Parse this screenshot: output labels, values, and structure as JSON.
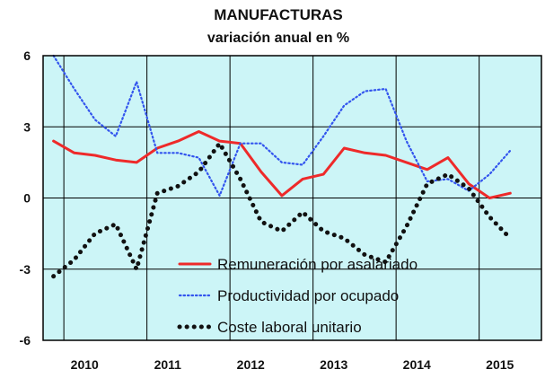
{
  "chart_data": {
    "type": "line",
    "title": "MANUFACTURAS",
    "subtitle": "variación anual en %",
    "xlabel": "",
    "ylabel": "",
    "x_tick_labels": [
      "2010",
      "2011",
      "2012",
      "2013",
      "2014",
      "2015"
    ],
    "y_ticks": [
      6,
      3,
      0,
      -3,
      -6
    ],
    "y_tick_labels": [
      "6",
      "3",
      "0",
      "-3",
      "-6"
    ],
    "ylim": [
      -6,
      6
    ],
    "xlim": [
      2009.75,
      2015.75
    ],
    "grid": true,
    "background_color": "#ccf5f7",
    "legend_position": "bottom-center",
    "series": [
      {
        "name": "Remuneración por asalariado",
        "color": "#ee2a2a",
        "style": "solid",
        "x": [
          2009.875,
          2010.125,
          2010.375,
          2010.625,
          2010.875,
          2011.125,
          2011.375,
          2011.625,
          2011.875,
          2012.125,
          2012.375,
          2012.625,
          2012.875,
          2013.125,
          2013.375,
          2013.625,
          2013.875,
          2014.125,
          2014.375,
          2014.625,
          2014.875,
          2015.125,
          2015.375
        ],
        "values": [
          2.4,
          1.9,
          1.8,
          1.6,
          1.5,
          2.1,
          2.4,
          2.8,
          2.4,
          2.3,
          1.1,
          0.1,
          0.8,
          1.0,
          2.1,
          1.9,
          1.8,
          1.5,
          1.2,
          1.7,
          0.6,
          0.0,
          0.2
        ]
      },
      {
        "name": "Productividad por ocupado",
        "color": "#3355ee",
        "style": "dotted",
        "x": [
          2009.875,
          2010.125,
          2010.375,
          2010.625,
          2010.875,
          2011.125,
          2011.375,
          2011.625,
          2011.875,
          2012.125,
          2012.375,
          2012.625,
          2012.875,
          2013.125,
          2013.375,
          2013.625,
          2013.875,
          2014.125,
          2014.375,
          2014.625,
          2014.875,
          2015.125,
          2015.375
        ],
        "values": [
          6.0,
          4.6,
          3.3,
          2.6,
          4.9,
          1.9,
          1.9,
          1.7,
          0.1,
          2.3,
          2.3,
          1.5,
          1.4,
          2.6,
          3.9,
          4.5,
          4.6,
          2.4,
          0.7,
          0.8,
          0.3,
          1.0,
          2.0
        ]
      },
      {
        "name": "Coste laboral unitario",
        "color": "#111111",
        "style": "dotted-thick",
        "x": [
          2009.875,
          2010.125,
          2010.375,
          2010.625,
          2010.875,
          2011.125,
          2011.375,
          2011.625,
          2011.875,
          2012.125,
          2012.375,
          2012.625,
          2012.875,
          2013.125,
          2013.375,
          2013.625,
          2013.875,
          2014.125,
          2014.375,
          2014.625,
          2014.875,
          2015.125,
          2015.375
        ],
        "values": [
          -3.3,
          -2.6,
          -1.5,
          -1.1,
          -3.0,
          0.2,
          0.5,
          1.1,
          2.3,
          0.8,
          -1.0,
          -1.4,
          -0.6,
          -1.4,
          -1.7,
          -2.4,
          -2.7,
          -1.2,
          0.6,
          1.0,
          0.4,
          -0.8,
          -1.7
        ]
      }
    ]
  }
}
